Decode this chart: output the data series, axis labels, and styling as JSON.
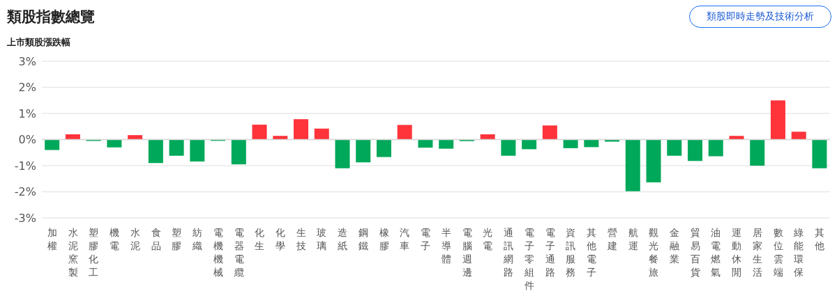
{
  "chart_data": {
    "type": "bar",
    "title": "類股指數總覽",
    "ylabel": "上市類股漲跌幅",
    "annotations": [
      "類股即時走勢及技術分析"
    ],
    "categories": [
      "加權",
      "水泥窯製",
      "塑膠化工",
      "機電",
      "水泥",
      "食品",
      "塑膠",
      "紡織",
      "電機機械",
      "電器電纜",
      "化生",
      "化學",
      "生技",
      "玻璃",
      "造紙",
      "鋼鐵",
      "橡膠",
      "汽車",
      "電子",
      "半導體",
      "電腦週邊",
      "光電",
      "通訊網路",
      "電子零組件",
      "電子通路",
      "資訊服務",
      "其他電子",
      "營建",
      "航運",
      "觀光餐旅",
      "金融業",
      "貿易百貨",
      "油電燃氣",
      "運動休閒",
      "居家生活",
      "數位雲端",
      "綠能環保",
      "其他"
    ],
    "values": [
      -0.4,
      0.2,
      -0.05,
      -0.3,
      0.17,
      -0.9,
      -0.62,
      -0.84,
      -0.05,
      -0.95,
      0.57,
      0.14,
      0.78,
      0.42,
      -1.1,
      -0.87,
      -0.67,
      0.56,
      -0.31,
      -0.35,
      -0.06,
      0.2,
      -0.62,
      -0.37,
      0.54,
      -0.33,
      -0.29,
      -0.08,
      -1.98,
      -1.64,
      -0.62,
      -0.82,
      -0.64,
      0.14,
      -1.0,
      1.5,
      0.3,
      -1.1
    ],
    "colors": [
      "#00a85a",
      "#ff333a",
      "#00a85a",
      "#00a85a",
      "#ff333a",
      "#00a85a",
      "#00a85a",
      "#00a85a",
      "#00a85a",
      "#00a85a",
      "#ff333a",
      "#ff333a",
      "#ff333a",
      "#ff333a",
      "#00a85a",
      "#00a85a",
      "#00a85a",
      "#ff333a",
      "#00a85a",
      "#00a85a",
      "#00a85a",
      "#ff333a",
      "#00a85a",
      "#00a85a",
      "#ff333a",
      "#00a85a",
      "#00a85a",
      "#00a85a",
      "#00a85a",
      "#00a85a",
      "#00a85a",
      "#00a85a",
      "#00a85a",
      "#ff333a",
      "#00a85a",
      "#ff333a",
      "#ff333a",
      "#00a85a"
    ],
    "ylim": [
      -3,
      3
    ],
    "yticks": [
      {
        "value": 3,
        "label": "3%"
      },
      {
        "value": 2,
        "label": "2%"
      },
      {
        "value": 1,
        "label": "1%"
      },
      {
        "value": 0,
        "label": "0%"
      },
      {
        "value": -1,
        "label": "-1%"
      },
      {
        "value": -2,
        "label": "-2%"
      },
      {
        "value": -3,
        "label": "-3%"
      }
    ],
    "grid": "y",
    "legend": false
  }
}
